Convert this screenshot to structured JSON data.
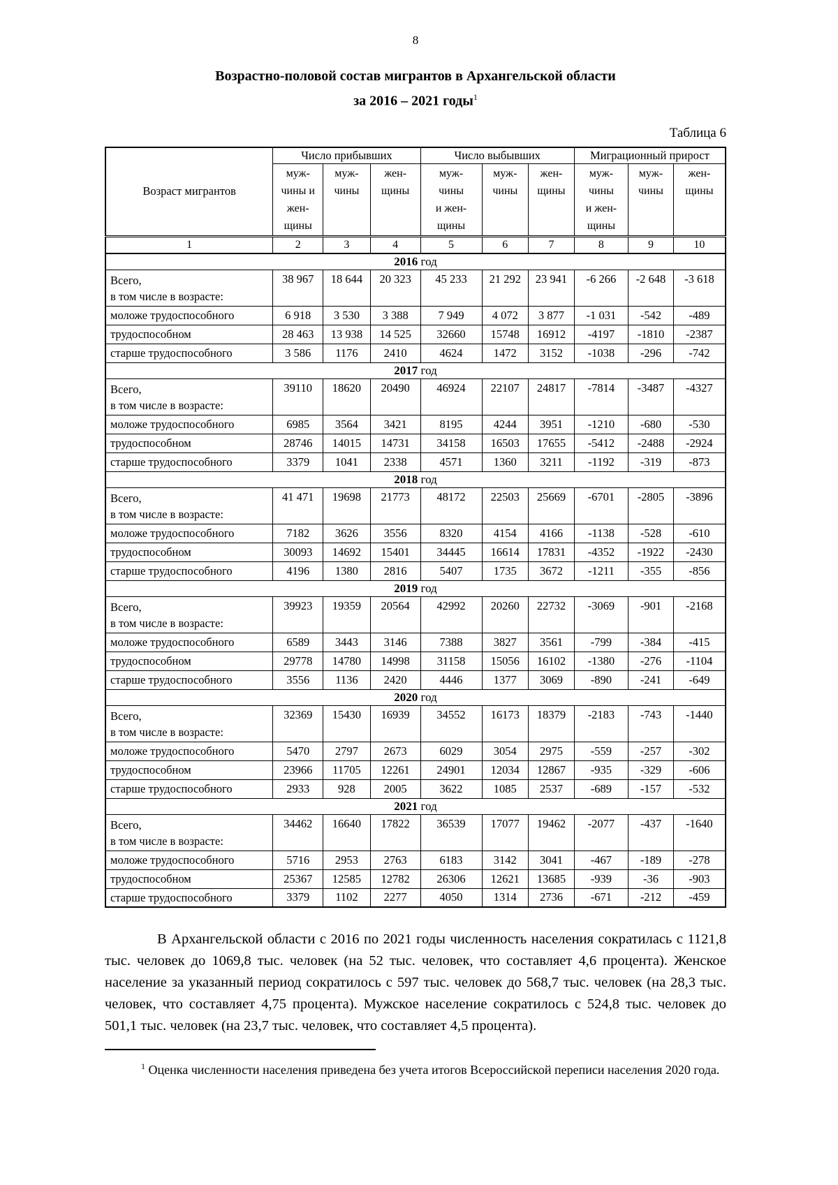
{
  "page": {
    "number": "8",
    "title_line1": "Возрастно-половой состав мигрантов в Архангельской области",
    "title_line2": "за 2016 – 2021 годы",
    "title_footnote_ref": "1",
    "table_label": "Таблица 6"
  },
  "table": {
    "header": {
      "age_col": "Возраст мигрантов",
      "groups": [
        "Число прибывших",
        "Число выбывших",
        "Миграционный прирост"
      ],
      "sub": [
        "муж-\nчины и\nжен-\nщины",
        "муж-\nчины",
        "жен-\nщины",
        "муж-\nчины\nи жен-\nщины",
        "муж-\nчины",
        "жен-\nщины",
        "муж-\nчины\nи жен-\nщины",
        "муж-\nчины",
        "жен-\nщины"
      ],
      "col_numbers": [
        "1",
        "2",
        "3",
        "4",
        "5",
        "6",
        "7",
        "8",
        "9",
        "10"
      ]
    },
    "sections": [
      {
        "year": "2016 год",
        "rows": [
          {
            "label": "Всего,\nв том числе в возрасте:",
            "values": [
              "38 967",
              "18 644",
              "20 323",
              "45 233",
              "21 292",
              "23 941",
              "-6 266",
              "-2 648",
              "-3 618"
            ]
          },
          {
            "label": "моложе трудоспособного",
            "values": [
              "6 918",
              "3 530",
              "3 388",
              "7 949",
              "4 072",
              "3 877",
              "-1 031",
              "-542",
              "-489"
            ]
          },
          {
            "label": "трудоспособном",
            "values": [
              "28 463",
              "13 938",
              "14 525",
              "32660",
              "15748",
              "16912",
              "-4197",
              "-1810",
              "-2387"
            ]
          },
          {
            "label": "старше трудоспособного",
            "values": [
              "3 586",
              "1176",
              "2410",
              "4624",
              "1472",
              "3152",
              "-1038",
              "-296",
              "-742"
            ]
          }
        ]
      },
      {
        "year": "2017 год",
        "rows": [
          {
            "label": "Всего,\nв том числе в возрасте:",
            "values": [
              "39110",
              "18620",
              "20490",
              "46924",
              "22107",
              "24817",
              "-7814",
              "-3487",
              "-4327"
            ]
          },
          {
            "label": "моложе трудоспособного",
            "values": [
              "6985",
              "3564",
              "3421",
              "8195",
              "4244",
              "3951",
              "-1210",
              "-680",
              "-530"
            ]
          },
          {
            "label": "трудоспособном",
            "values": [
              "28746",
              "14015",
              "14731",
              "34158",
              "16503",
              "17655",
              "-5412",
              "-2488",
              "-2924"
            ]
          },
          {
            "label": "старше трудоспособного",
            "values": [
              "3379",
              "1041",
              "2338",
              "4571",
              "1360",
              "3211",
              "-1192",
              "-319",
              "-873"
            ]
          }
        ]
      },
      {
        "year": "2018 год",
        "rows": [
          {
            "label": "Всего,\nв том числе в возрасте:",
            "values": [
              "41 471",
              "19698",
              "21773",
              "48172",
              "22503",
              "25669",
              "-6701",
              "-2805",
              "-3896"
            ]
          },
          {
            "label": "моложе трудоспособного",
            "values": [
              "7182",
              "3626",
              "3556",
              "8320",
              "4154",
              "4166",
              "-1138",
              "-528",
              "-610"
            ]
          },
          {
            "label": "трудоспособном",
            "values": [
              "30093",
              "14692",
              "15401",
              "34445",
              "16614",
              "17831",
              "-4352",
              "-1922",
              "-2430"
            ]
          },
          {
            "label": "старше трудоспособного",
            "values": [
              "4196",
              "1380",
              "2816",
              "5407",
              "1735",
              "3672",
              "-1211",
              "-355",
              "-856"
            ]
          }
        ]
      },
      {
        "year": "2019 год",
        "rows": [
          {
            "label": "Всего,\nв том числе в возрасте:",
            "values": [
              "39923",
              "19359",
              "20564",
              "42992",
              "20260",
              "22732",
              "-3069",
              "-901",
              "-2168"
            ]
          },
          {
            "label": "моложе трудоспособного",
            "values": [
              "6589",
              "3443",
              "3146",
              "7388",
              "3827",
              "3561",
              "-799",
              "-384",
              "-415"
            ]
          },
          {
            "label": "трудоспособном",
            "values": [
              "29778",
              "14780",
              "14998",
              "31158",
              "15056",
              "16102",
              "-1380",
              "-276",
              "-1104"
            ]
          },
          {
            "label": "старше трудоспособного",
            "values": [
              "3556",
              "1136",
              "2420",
              "4446",
              "1377",
              "3069",
              "-890",
              "-241",
              "-649"
            ]
          }
        ]
      },
      {
        "year": "2020 год",
        "rows": [
          {
            "label": "Всего,\nв том числе в возрасте:",
            "values": [
              "32369",
              "15430",
              "16939",
              "34552",
              "16173",
              "18379",
              "-2183",
              "-743",
              "-1440"
            ]
          },
          {
            "label": "моложе трудоспособного",
            "values": [
              "5470",
              "2797",
              "2673",
              "6029",
              "3054",
              "2975",
              "-559",
              "-257",
              "-302"
            ]
          },
          {
            "label": "трудоспособном",
            "values": [
              "23966",
              "11705",
              "12261",
              "24901",
              "12034",
              "12867",
              "-935",
              "-329",
              "-606"
            ]
          },
          {
            "label": "старше трудоспособного",
            "values": [
              "2933",
              "928",
              "2005",
              "3622",
              "1085",
              "2537",
              "-689",
              "-157",
              "-532"
            ]
          }
        ]
      },
      {
        "year": "2021 год",
        "rows": [
          {
            "label": "Всего,\nв том числе в возрасте:",
            "values": [
              "34462",
              "16640",
              "17822",
              "36539",
              "17077",
              "19462",
              "-2077",
              "-437",
              "-1640"
            ]
          },
          {
            "label": "моложе трудоспособного",
            "values": [
              "5716",
              "2953",
              "2763",
              "6183",
              "3142",
              "3041",
              "-467",
              "-189",
              "-278"
            ]
          },
          {
            "label": "трудоспособном",
            "values": [
              "25367",
              "12585",
              "12782",
              "26306",
              "12621",
              "13685",
              "-939",
              "-36",
              "-903"
            ]
          },
          {
            "label": "старше трудоспособного",
            "values": [
              "3379",
              "1102",
              "2277",
              "4050",
              "1314",
              "2736",
              "-671",
              "-212",
              "-459"
            ]
          }
        ]
      }
    ]
  },
  "paragraph": "В Архангельской области с 2016 по 2021 годы численность населения сократилась с 1121,8 тыс. человек до 1069,8 тыс. человек (на 52 тыс. человек, что составляет 4,6 процента). Женское население за указанный период сократилось с 597 тыс. человек до 568,7 тыс. человек (на 28,3 тыс. человек, что составляет 4,75 процента). Мужское население сократилось с 524,8 тыс. человек до 501,1 тыс. человек (на 23,7 тыс. человек, что составляет 4,5 процента).",
  "footnote": {
    "ref": "1",
    "text": "Оценка численности населения приведена без учета итогов Всероссийской переписи населения 2020 года."
  }
}
